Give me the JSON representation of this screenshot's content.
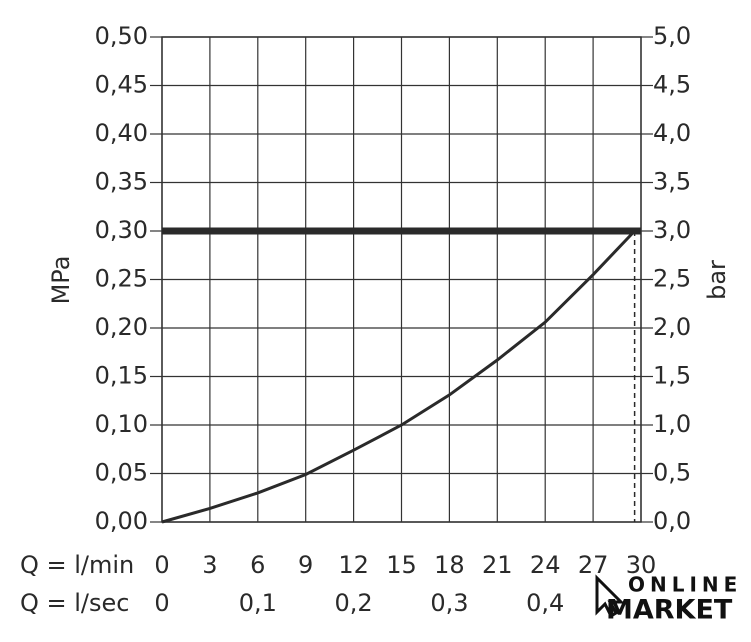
{
  "chart_data": {
    "type": "line",
    "ylabel": "MPa",
    "y2label": "bar",
    "xlabel": "Q = l/min",
    "x2label": "Q = l/sec",
    "xlim": [
      0,
      30
    ],
    "xticks": [
      0,
      3,
      6,
      9,
      12,
      15,
      18,
      21,
      24,
      27,
      30
    ],
    "x2lim": [
      0,
      0.5
    ],
    "x2ticks": [
      0,
      {
        "value": 0.1,
        "label": "0,1"
      },
      {
        "value": 0.2,
        "label": "0,2"
      },
      {
        "value": 0.3,
        "label": "0,3"
      },
      {
        "value": 0.4,
        "label": "0,4"
      }
    ],
    "ylim": [
      0,
      0.5
    ],
    "yticks": [
      {
        "value": 0,
        "label": "0,00"
      },
      {
        "value": 0.05,
        "label": "0,05"
      },
      {
        "value": 0.1,
        "label": "0,10"
      },
      {
        "value": 0.15,
        "label": "0,15"
      },
      {
        "value": 0.2,
        "label": "0,20"
      },
      {
        "value": 0.25,
        "label": "0,25"
      },
      {
        "value": 0.3,
        "label": "0,30"
      },
      {
        "value": 0.35,
        "label": "0,35"
      },
      {
        "value": 0.4,
        "label": "0,40"
      },
      {
        "value": 0.45,
        "label": "0,45"
      },
      {
        "value": 0.5,
        "label": "0,50"
      }
    ],
    "y2lim": [
      0,
      5
    ],
    "y2ticks": [
      {
        "value": 0,
        "label": "0,0"
      },
      {
        "value": 0.5,
        "label": "0,5"
      },
      {
        "value": 1,
        "label": "1,0"
      },
      {
        "value": 1.5,
        "label": "1,5"
      },
      {
        "value": 2,
        "label": "2,0"
      },
      {
        "value": 2.5,
        "label": "2,5"
      },
      {
        "value": 3,
        "label": "3,0"
      },
      {
        "value": 3.5,
        "label": "3,5"
      },
      {
        "value": 4,
        "label": "4,0"
      },
      {
        "value": 4.5,
        "label": "4,5"
      },
      {
        "value": 5,
        "label": "5,0"
      }
    ],
    "grid": true,
    "series": [
      {
        "color": "#2a2a2a",
        "width": 3,
        "x": [
          0,
          3,
          6,
          9,
          12,
          15,
          18,
          21,
          24,
          27,
          29.6
        ],
        "values": [
          0,
          0.014,
          0.03,
          0.049,
          0.074,
          0.1,
          0.131,
          0.167,
          0.206,
          0.255,
          0.3
        ]
      },
      {
        "color": "#2a2a2a",
        "width": 7,
        "x": [
          0,
          30
        ],
        "values": [
          0.3,
          0.3
        ]
      },
      {
        "color": "#2a2a2a",
        "width": 1.5,
        "dash": true,
        "x": [
          29.6,
          29.6
        ],
        "values": [
          0.3,
          0
        ]
      }
    ]
  },
  "watermark": {
    "line1": "ONLINE",
    "line2": "MARKET"
  }
}
